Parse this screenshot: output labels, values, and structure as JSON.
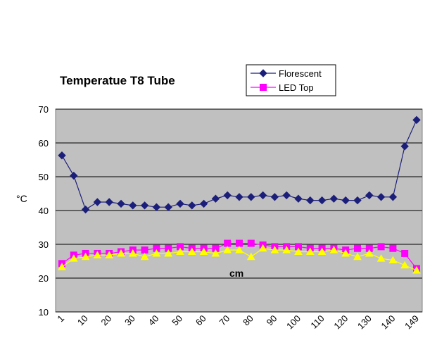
{
  "chart_data": {
    "type": "line",
    "title": "Temperatue T8 Tube",
    "xlabel": "cm",
    "ylabel": "°C",
    "ylim": [
      10,
      70
    ],
    "yticks": [
      10,
      20,
      30,
      40,
      50,
      60,
      70
    ],
    "grid": true,
    "legend_position": "top-right",
    "categories": [
      "1",
      "5",
      "10",
      "15",
      "20",
      "25",
      "30",
      "35",
      "40",
      "45",
      "50",
      "55",
      "60",
      "65",
      "70",
      "75",
      "80",
      "85",
      "90",
      "95",
      "100",
      "105",
      "110",
      "115",
      "120",
      "125",
      "130",
      "135",
      "140",
      "145",
      "149"
    ],
    "xtick_labels": [
      "1",
      "10",
      "20",
      "30",
      "40",
      "50",
      "60",
      "70",
      "80",
      "90",
      "100",
      "110",
      "120",
      "130",
      "140",
      "149"
    ],
    "series": [
      {
        "name": "Florescent",
        "color": "#1c1f7a",
        "marker": "diamond",
        "show_in_legend": true,
        "values": [
          56.3,
          50.3,
          40.3,
          42.5,
          42.5,
          42.0,
          41.5,
          41.5,
          41.0,
          41.0,
          42.0,
          41.5,
          42.0,
          43.5,
          44.5,
          44.0,
          44.0,
          44.5,
          44.0,
          44.5,
          43.5,
          43.0,
          43.0,
          43.5,
          43.0,
          43.0,
          44.5,
          44.0,
          44.0,
          59.0,
          66.8
        ]
      },
      {
        "name": "LED Top",
        "color": "#ff00ff",
        "marker": "square",
        "show_in_legend": true,
        "values": [
          24.3,
          26.8,
          27.3,
          27.3,
          27.3,
          27.8,
          28.3,
          28.3,
          28.8,
          28.8,
          29.3,
          28.8,
          28.8,
          28.8,
          30.3,
          30.3,
          30.3,
          29.8,
          29.3,
          29.3,
          29.3,
          28.8,
          28.8,
          28.8,
          28.3,
          28.8,
          28.8,
          29.3,
          28.8,
          27.3,
          22.8
        ]
      },
      {
        "name": "",
        "color": "#ffff00",
        "marker": "triangle",
        "show_in_legend": false,
        "values": [
          23.3,
          25.8,
          26.3,
          26.8,
          26.8,
          27.3,
          27.3,
          26.3,
          27.3,
          27.3,
          27.8,
          27.8,
          27.8,
          27.3,
          28.3,
          28.3,
          26.3,
          28.8,
          28.3,
          28.3,
          27.8,
          27.8,
          27.8,
          28.3,
          27.3,
          26.3,
          27.3,
          25.8,
          25.3,
          23.8,
          22.3
        ]
      }
    ]
  },
  "colors": {
    "plot_background": "#c0c0c0",
    "gridline": "#000000"
  }
}
